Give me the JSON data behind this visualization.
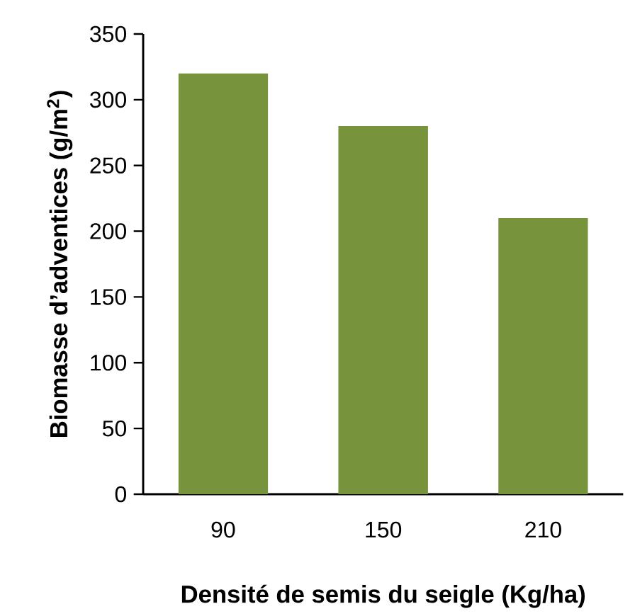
{
  "chart_data": {
    "type": "bar",
    "xlabel": "Densité de semis du seigle (Kg/ha)",
    "ylabel": "Biomasse d’adventices (g/m$^{2}$)",
    "categories": [
      "90",
      "150",
      "210"
    ],
    "values": [
      320,
      280,
      210
    ],
    "color": "#77933c",
    "ylim": [
      0,
      350
    ],
    "yticks": [
      0,
      50,
      100,
      150,
      200,
      250,
      300,
      350
    ],
    "grid": false,
    "legend": false
  }
}
